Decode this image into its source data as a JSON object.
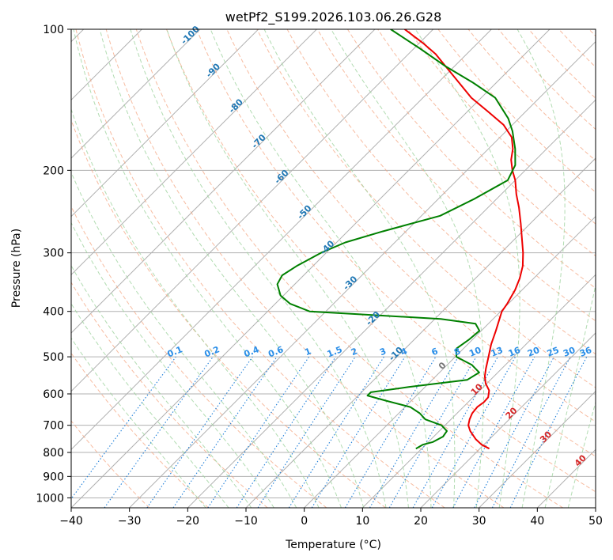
{
  "chart_data": {
    "type": "skew-t",
    "title": "wetPf2_S199.2026.103.06.26.G28",
    "xlabel": "Temperature (°C)",
    "ylabel": "Pressure (hPa)",
    "xlim": [
      -40,
      50
    ],
    "ylim": [
      1050,
      100
    ],
    "x_ticks": [
      "−40",
      "−30",
      "−20",
      "−10",
      "0",
      "10",
      "20",
      "30",
      "40",
      "50"
    ],
    "x_tick_values": [
      -40,
      -30,
      -20,
      -10,
      0,
      10,
      20,
      30,
      40,
      50
    ],
    "y_ticks": [
      "100",
      "200",
      "300",
      "400",
      "500",
      "600",
      "700",
      "800",
      "900",
      "1000"
    ],
    "y_tick_values": [
      100,
      200,
      300,
      400,
      500,
      600,
      700,
      800,
      900,
      1000
    ],
    "colors": {
      "temperature": "#ee0000",
      "dewpoint": "#008000",
      "isotherm": "#b0b0b0",
      "isobar": "#b0b0b0",
      "dry_adiabat": "#f4a582",
      "moist_adiabat": "#9fd39f",
      "mixing_ratio": "#1f7fd9",
      "isotherm_label": "#1f77b4",
      "warm_label": "#d62728"
    },
    "isotherm_labels_upper": [
      {
        "t": -100,
        "text": "-100"
      },
      {
        "t": -90,
        "text": "-90"
      },
      {
        "t": -80,
        "text": "-80"
      },
      {
        "t": -70,
        "text": "-70"
      },
      {
        "t": -60,
        "text": "-60"
      },
      {
        "t": -50,
        "text": "-50"
      },
      {
        "t": -40,
        "text": "-40"
      },
      {
        "t": -30,
        "text": "-30"
      },
      {
        "t": -20,
        "text": "-20"
      },
      {
        "t": -10,
        "text": "-10"
      }
    ],
    "isotherm_labels_lower": [
      {
        "t": 0,
        "text": "0",
        "color": "gray"
      },
      {
        "t": 10,
        "text": "10",
        "color": "red"
      },
      {
        "t": 20,
        "text": "20",
        "color": "red"
      },
      {
        "t": 30,
        "text": "30",
        "color": "red"
      },
      {
        "t": 40,
        "text": "40",
        "color": "red"
      }
    ],
    "mixing_ratio_labels": [
      "0.1",
      "0.2",
      "0.4",
      "0.6",
      "1",
      "1.5",
      "2",
      "3",
      "4",
      "6",
      "8",
      "10",
      "13",
      "16",
      "20",
      "25",
      "30",
      "36"
    ],
    "mixing_ratio_values": [
      0.1,
      0.2,
      0.4,
      0.6,
      1,
      1.5,
      2,
      3,
      4,
      6,
      8,
      10,
      13,
      16,
      20,
      25,
      30,
      36
    ],
    "series": [
      {
        "name": "Temperature",
        "points": [
          [
            785,
            21.6
          ],
          [
            770,
            19.6
          ],
          [
            750,
            17.7
          ],
          [
            720,
            15.3
          ],
          [
            700,
            14.0
          ],
          [
            680,
            13.2
          ],
          [
            660,
            12.6
          ],
          [
            640,
            12.4
          ],
          [
            625,
            12.7
          ],
          [
            610,
            12.6
          ],
          [
            590,
            11.6
          ],
          [
            570,
            9.8
          ],
          [
            550,
            8.4
          ],
          [
            530,
            7.3
          ],
          [
            500,
            5.7
          ],
          [
            470,
            4.0
          ],
          [
            440,
            2.5
          ],
          [
            410,
            0.8
          ],
          [
            400,
            0.2
          ],
          [
            385,
            -0.2
          ],
          [
            360,
            -1.2
          ],
          [
            340,
            -2.4
          ],
          [
            320,
            -4.0
          ],
          [
            300,
            -6.2
          ],
          [
            280,
            -8.8
          ],
          [
            260,
            -11.6
          ],
          [
            240,
            -14.7
          ],
          [
            225,
            -17.4
          ],
          [
            210,
            -20.0
          ],
          [
            200,
            -22.2
          ],
          [
            190,
            -24.2
          ],
          [
            180,
            -25.8
          ],
          [
            170,
            -28.0
          ],
          [
            160,
            -31.5
          ],
          [
            150,
            -36.4
          ],
          [
            140,
            -41.7
          ],
          [
            130,
            -46.4
          ],
          [
            120,
            -51.5
          ],
          [
            113,
            -55.3
          ],
          [
            107,
            -59.4
          ],
          [
            100,
            -64.9
          ]
        ]
      },
      {
        "name": "Dewpoint",
        "points": [
          [
            785,
            9.0
          ],
          [
            770,
            9.5
          ],
          [
            760,
            10.8
          ],
          [
            740,
            11.6
          ],
          [
            720,
            11.3
          ],
          [
            700,
            9.4
          ],
          [
            680,
            5.6
          ],
          [
            660,
            3.6
          ],
          [
            640,
            0.9
          ],
          [
            620,
            -4.5
          ],
          [
            605,
            -8.4
          ],
          [
            595,
            -8.4
          ],
          [
            580,
            -2.8
          ],
          [
            560,
            6.0
          ],
          [
            540,
            6.8
          ],
          [
            520,
            4.2
          ],
          [
            500,
            0.2
          ],
          [
            480,
            -1.2
          ],
          [
            460,
            -0.6
          ],
          [
            440,
            -0.3
          ],
          [
            425,
            -2.2
          ],
          [
            415,
            -9.0
          ],
          [
            405,
            -24.9
          ],
          [
            400,
            -32.8
          ],
          [
            385,
            -37.5
          ],
          [
            370,
            -40.5
          ],
          [
            350,
            -43.0
          ],
          [
            335,
            -43.7
          ],
          [
            320,
            -42.8
          ],
          [
            300,
            -40.9
          ],
          [
            285,
            -38.5
          ],
          [
            270,
            -34.0
          ],
          [
            250,
            -26.8
          ],
          [
            230,
            -23.8
          ],
          [
            210,
            -21.3
          ],
          [
            195,
            -22.6
          ],
          [
            180,
            -25.4
          ],
          [
            165,
            -28.9
          ],
          [
            155,
            -31.8
          ],
          [
            140,
            -37.6
          ],
          [
            130,
            -44.0
          ],
          [
            120,
            -51.5
          ],
          [
            110,
            -58.9
          ],
          [
            100,
            -67.3
          ]
        ]
      }
    ],
    "isobars_hPa": [
      100,
      200,
      300,
      400,
      500,
      600,
      700,
      800,
      900,
      1000
    ],
    "grid": true
  }
}
